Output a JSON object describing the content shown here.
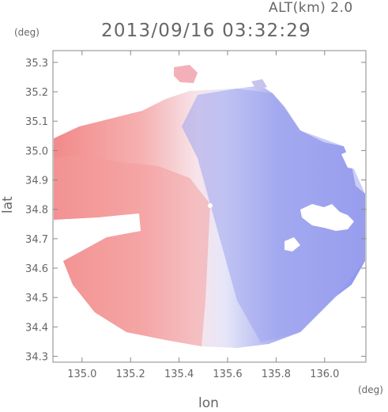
{
  "header": {
    "altitude_label": "ALT(km) 2.0",
    "timestamp": "2013/09/16 03:32:29",
    "y_unit": "(deg)",
    "x_unit": "(deg)"
  },
  "axes": {
    "xlabel": "lon",
    "ylabel": "lat",
    "xlim": [
      134.88,
      136.17
    ],
    "ylim": [
      34.28,
      35.34
    ],
    "xticks": [
      "135.0",
      "135.2",
      "135.4",
      "135.6",
      "135.8",
      "136.0"
    ],
    "yticks": [
      "35.3",
      "35.2",
      "35.1",
      "35.0",
      "34.9",
      "34.8",
      "34.7",
      "34.6",
      "34.5",
      "34.4",
      "34.3"
    ]
  },
  "colors": {
    "approaching": "#7f7ff0",
    "receding": "#f08080",
    "neutral": "#f4f0f4",
    "axis": "#888888"
  },
  "radar": {
    "center_lon": 135.53,
    "center_lat": 34.81
  }
}
